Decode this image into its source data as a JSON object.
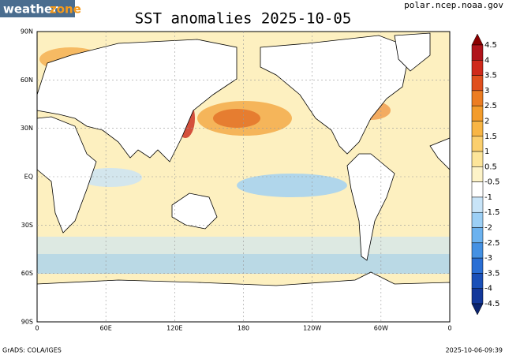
{
  "logo": {
    "part1": "weather",
    "part2": "zone"
  },
  "title": "SST anomalies 2025-10-05",
  "source": "polar.ncep.noaa.gov",
  "lat_labels": [
    "90N",
    "60N",
    "30N",
    "EQ",
    "30S",
    "60S",
    "90S"
  ],
  "lon_labels": [
    "0",
    "60E",
    "120E",
    "180",
    "120W",
    "60W",
    "0"
  ],
  "colorbar": {
    "labels": [
      "4.5",
      "4",
      "3.5",
      "3",
      "2.5",
      "2",
      "1.5",
      "1",
      "0.5",
      "-0.5",
      "-1",
      "-1.5",
      "-2",
      "-2.5",
      "-3",
      "-3.5",
      "-4",
      "-4.5"
    ],
    "colors": [
      "#8b0000",
      "#b0141b",
      "#cf2a1b",
      "#e0501e",
      "#ec7d22",
      "#f39c2c",
      "#f8b545",
      "#fbcf6e",
      "#fde59a",
      "#fdf3c8",
      "#ffffff",
      "#c8e4f8",
      "#9ccff5",
      "#6cb2ef",
      "#4591e3",
      "#2a6fd4",
      "#1a50b8",
      "#13389a",
      "#0b2470"
    ]
  },
  "footer": {
    "left": "GrADS: COLA/IGES",
    "right": "2025-10-06-09:39"
  }
}
